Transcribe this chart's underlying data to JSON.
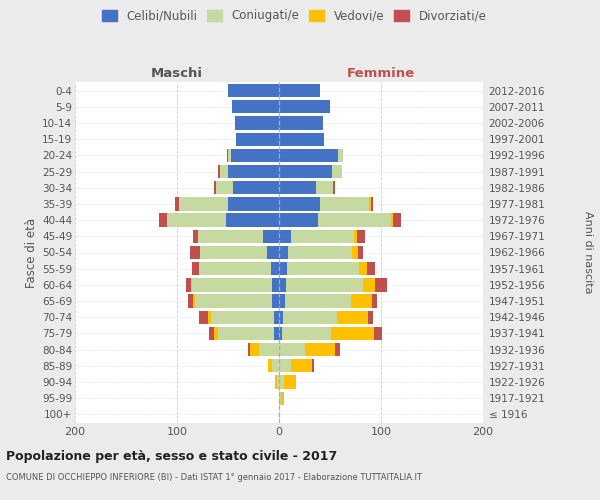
{
  "age_groups": [
    "100+",
    "95-99",
    "90-94",
    "85-89",
    "80-84",
    "75-79",
    "70-74",
    "65-69",
    "60-64",
    "55-59",
    "50-54",
    "45-49",
    "40-44",
    "35-39",
    "30-34",
    "25-29",
    "20-24",
    "15-19",
    "10-14",
    "5-9",
    "0-4"
  ],
  "birth_years": [
    "≤ 1916",
    "1917-1921",
    "1922-1926",
    "1927-1931",
    "1932-1936",
    "1937-1941",
    "1942-1946",
    "1947-1951",
    "1952-1956",
    "1957-1961",
    "1962-1966",
    "1967-1971",
    "1972-1976",
    "1977-1981",
    "1982-1986",
    "1987-1991",
    "1992-1996",
    "1997-2001",
    "2002-2006",
    "2007-2011",
    "2012-2016"
  ],
  "males_celibi": [
    0,
    0,
    0,
    0,
    0,
    5,
    5,
    7,
    7,
    8,
    12,
    16,
    52,
    50,
    45,
    50,
    47,
    42,
    43,
    46,
    50
  ],
  "males_coniugati": [
    0,
    0,
    2,
    7,
    20,
    55,
    62,
    75,
    78,
    70,
    65,
    63,
    58,
    48,
    17,
    8,
    3,
    0,
    0,
    0,
    0
  ],
  "males_vedovi": [
    0,
    0,
    2,
    4,
    8,
    4,
    3,
    2,
    1,
    0,
    0,
    0,
    0,
    0,
    0,
    0,
    0,
    0,
    0,
    0,
    0
  ],
  "males_divorziati": [
    0,
    0,
    0,
    0,
    2,
    5,
    8,
    5,
    5,
    7,
    10,
    5,
    8,
    4,
    2,
    2,
    1,
    0,
    0,
    0,
    0
  ],
  "females_nubili": [
    0,
    0,
    0,
    0,
    0,
    3,
    4,
    6,
    7,
    8,
    9,
    12,
    38,
    40,
    36,
    52,
    58,
    44,
    43,
    50,
    40
  ],
  "females_coniugate": [
    0,
    2,
    5,
    12,
    25,
    48,
    53,
    65,
    75,
    70,
    63,
    62,
    72,
    48,
    17,
    10,
    5,
    0,
    0,
    0,
    0
  ],
  "females_vedove": [
    0,
    3,
    12,
    20,
    30,
    42,
    30,
    20,
    12,
    8,
    5,
    2,
    2,
    2,
    0,
    0,
    0,
    0,
    0,
    0,
    0
  ],
  "females_divorziate": [
    0,
    0,
    0,
    2,
    5,
    8,
    5,
    5,
    12,
    8,
    5,
    8,
    8,
    2,
    2,
    0,
    0,
    0,
    0,
    0,
    0
  ],
  "color_celibi": "#4472c4",
  "color_coniugati": "#c5d9a0",
  "color_vedovi": "#ffc000",
  "color_divorziati": "#c0504d",
  "xlim": 200,
  "title": "Popolazione per età, sesso e stato civile - 2017",
  "subtitle": "COMUNE DI OCCHIEPPO INFERIORE (BI) - Dati ISTAT 1° gennaio 2017 - Elaborazione TUTTAITALIA.IT",
  "ylabel_left": "Fasce di età",
  "ylabel_right": "Anni di nascita",
  "legend_labels": [
    "Celibi/Nubili",
    "Coniugati/e",
    "Vedovi/e",
    "Divorziati/e"
  ],
  "header_left": "Maschi",
  "header_right": "Femmine",
  "bg_color": "#ebebeb",
  "plot_bg": "#ffffff",
  "text_color": "#555555",
  "header_left_color": "#555555",
  "header_right_color": "#c0504d"
}
